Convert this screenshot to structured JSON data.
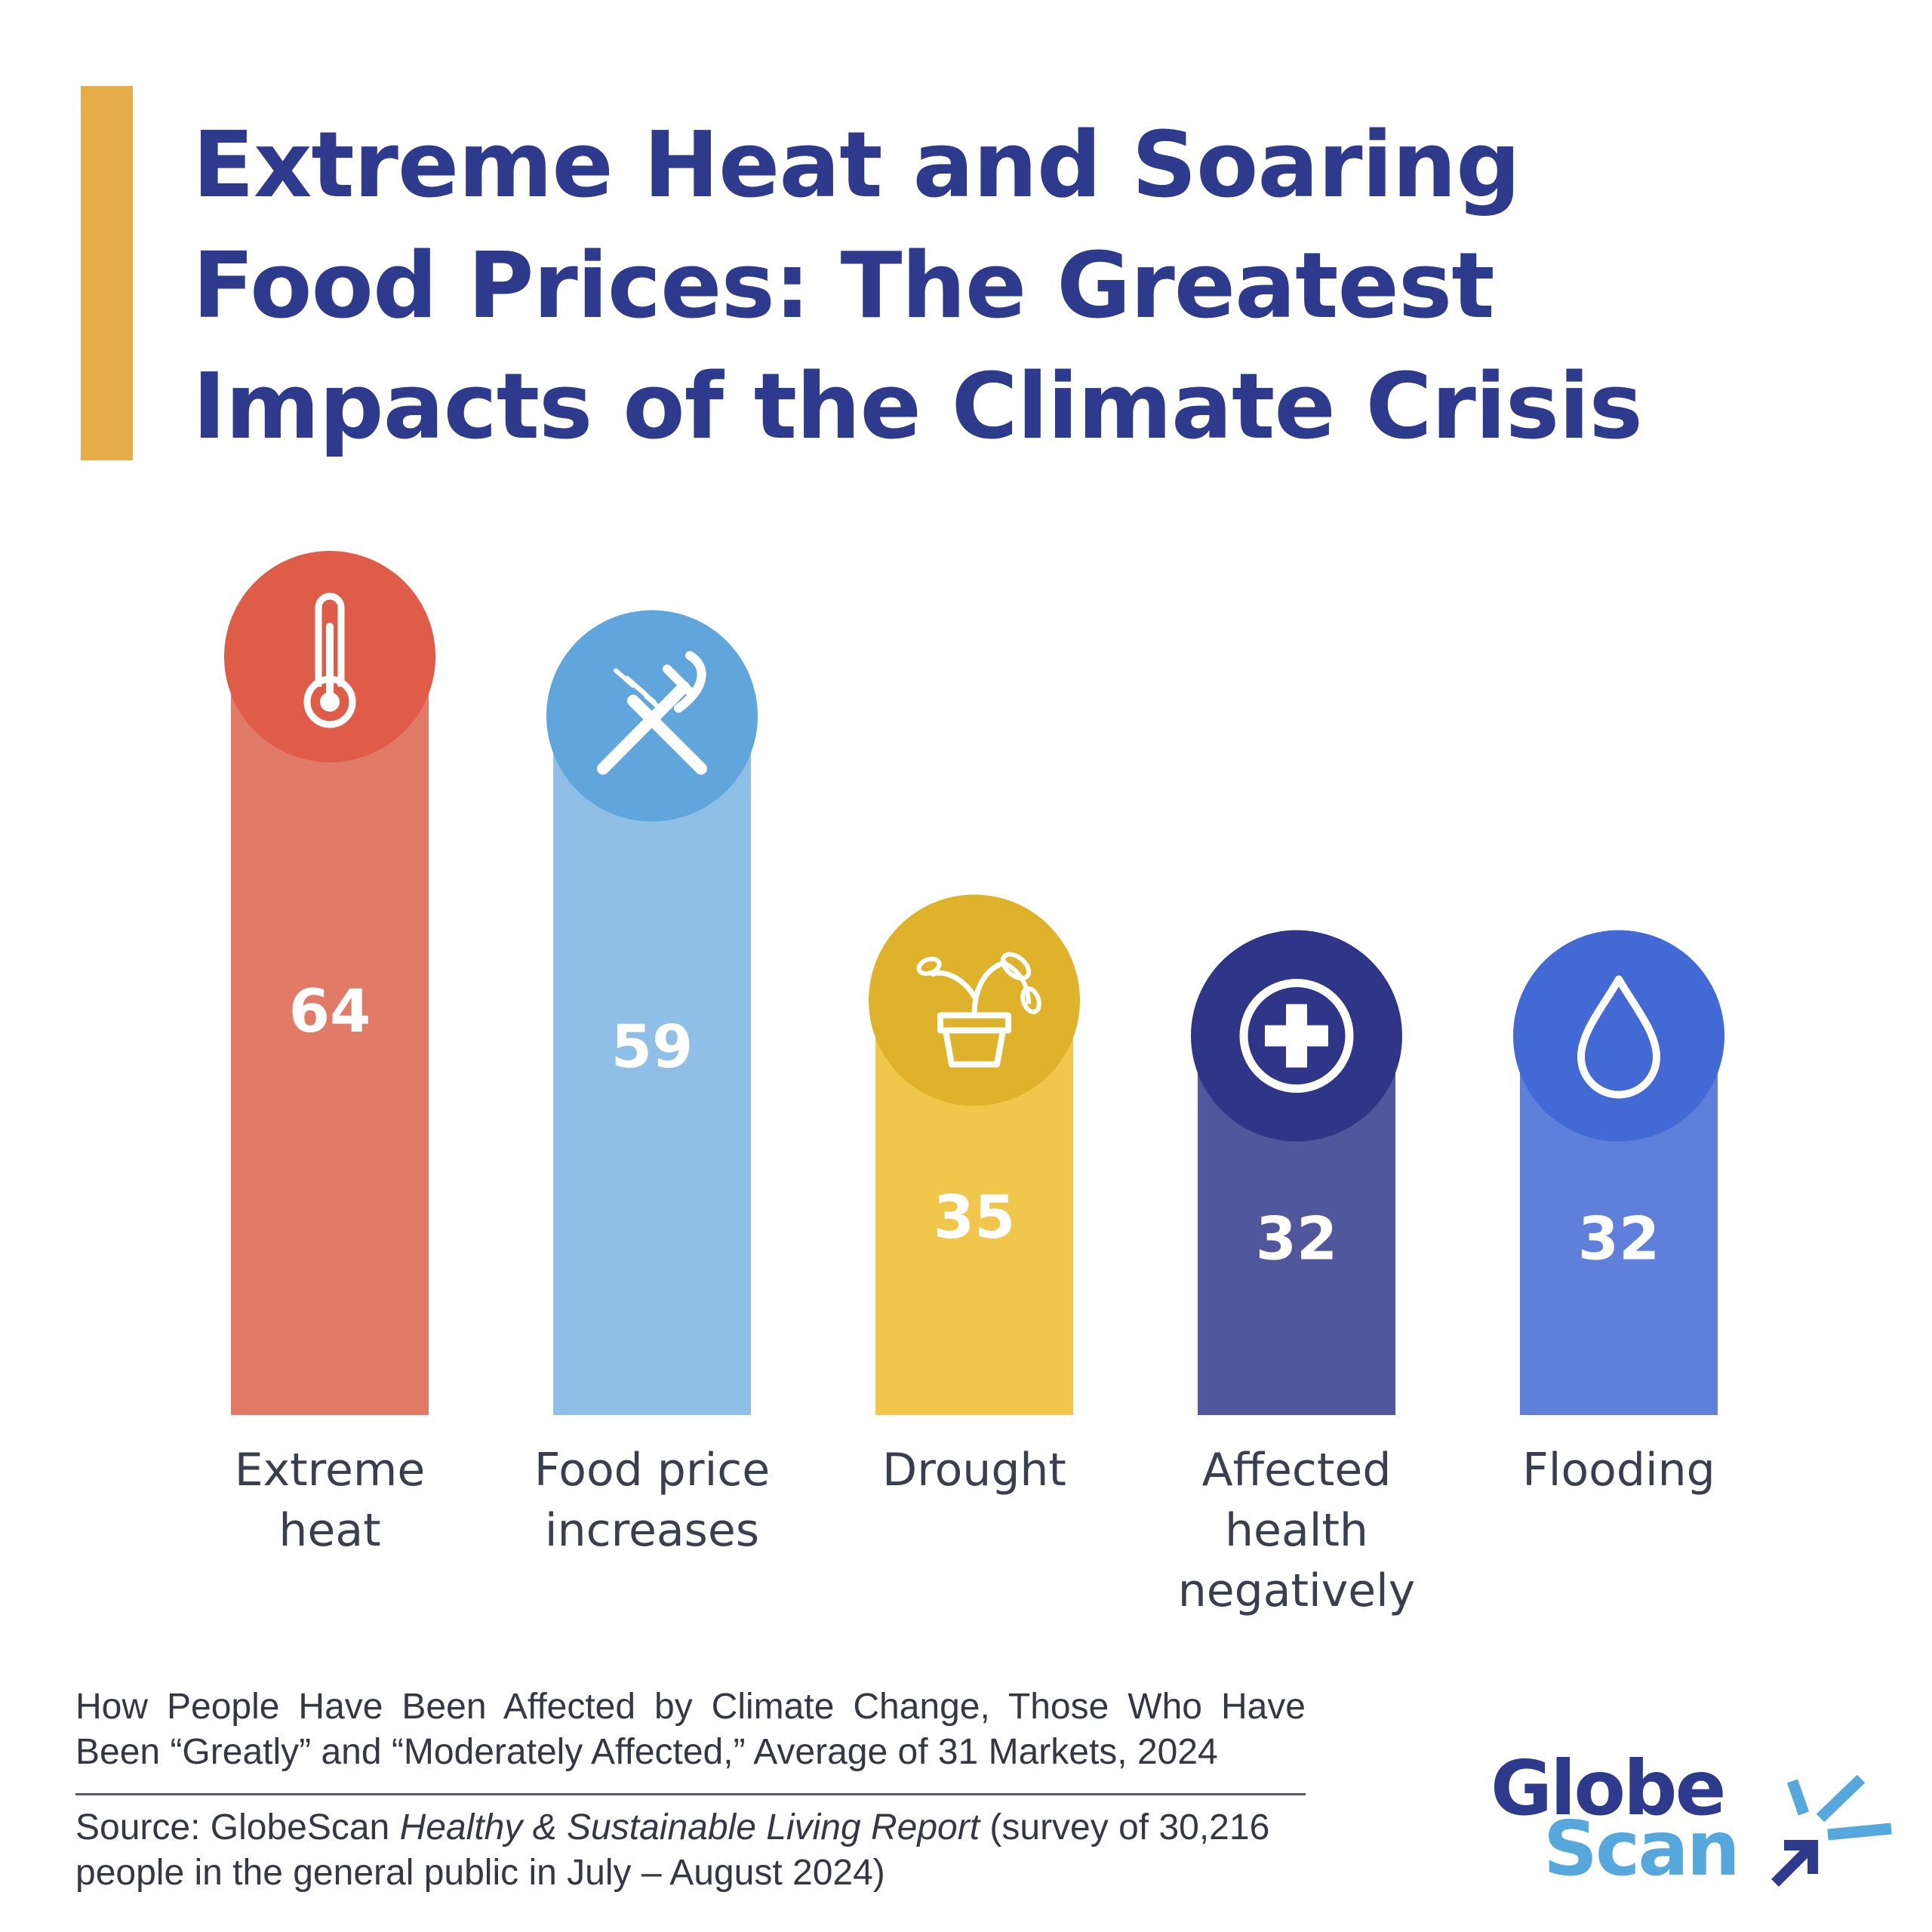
{
  "title": "Extreme Heat and Soaring Food Prices: The Greatest Impacts of the Climate Crisis",
  "subtitle": {
    "line1": "How People Have Been Affected by Climate Change, Those Who Have",
    "line2": "Been “Greatly” and “Moderately Affected,” Average of 31 Markets, 2024"
  },
  "source": {
    "prefix": "Source: GlobeScan ",
    "report": "Healthy & Sustainable Living Report",
    "suffix": " (survey of 30,216 people in the general public in July – August 2024)"
  },
  "logo": {
    "line1": "Globe",
    "line2": "Scan"
  },
  "colors": {
    "title": "#2E3A8C",
    "accent_bar": "#E5AC48",
    "logo_dark": "#2E3A8C",
    "logo_light": "#56A7DC"
  },
  "chart_data": {
    "type": "bar",
    "title": "",
    "xlabel": "",
    "ylabel": "",
    "ylim": [
      0,
      100
    ],
    "grid": false,
    "categories": [
      "Extreme heat",
      "Food price increases",
      "Drought",
      "Affected health negatively",
      "Flooding"
    ],
    "values": [
      64,
      59,
      35,
      32,
      32
    ],
    "label_lines": [
      [
        "Extreme",
        "heat"
      ],
      [
        "Food price",
        "increases"
      ],
      [
        "Drought"
      ],
      [
        "Affected",
        "health",
        "negatively"
      ],
      [
        "Flooding"
      ]
    ],
    "icons": [
      "thermometer-icon",
      "fork-knife-icon",
      "plant-pot-icon",
      "medical-cross-icon",
      "water-drop-icon"
    ],
    "bar_colors": [
      "#E27A68",
      "#8FBEE6",
      "#F0C74B",
      "#50579D",
      "#5E80DA"
    ],
    "circle_colors": [
      "#DF5C49",
      "#60A5DC",
      "#DEB22B",
      "#2F3688",
      "#4369D4"
    ]
  }
}
